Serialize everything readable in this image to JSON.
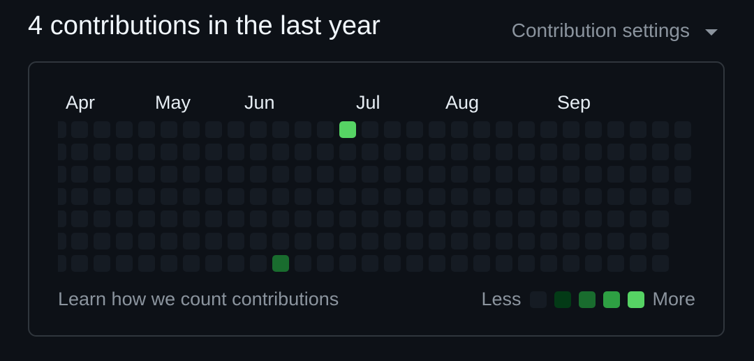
{
  "header": {
    "title": "4 contributions in the last year",
    "settings_label": "Contribution settings"
  },
  "calendar": {
    "months": [
      {
        "label": "Apr",
        "week": 1
      },
      {
        "label": "May",
        "week": 5
      },
      {
        "label": "Jun",
        "week": 9
      },
      {
        "label": "Jul",
        "week": 14
      },
      {
        "label": "Aug",
        "week": 18
      },
      {
        "label": "Sep",
        "week": 23
      }
    ],
    "weeks": 29,
    "days_per_week": 7,
    "first_week_partial": true,
    "last_week_days": 4,
    "contributions": [
      {
        "week": 13,
        "day": 0,
        "level": 4
      },
      {
        "week": 10,
        "day": 6,
        "level": 2
      }
    ],
    "level_colors": [
      "#151b23",
      "#033a16",
      "#196c2e",
      "#2ea043",
      "#56d364"
    ]
  },
  "footer": {
    "learn_link": "Learn how we count contributions",
    "legend_less": "Less",
    "legend_more": "More"
  }
}
